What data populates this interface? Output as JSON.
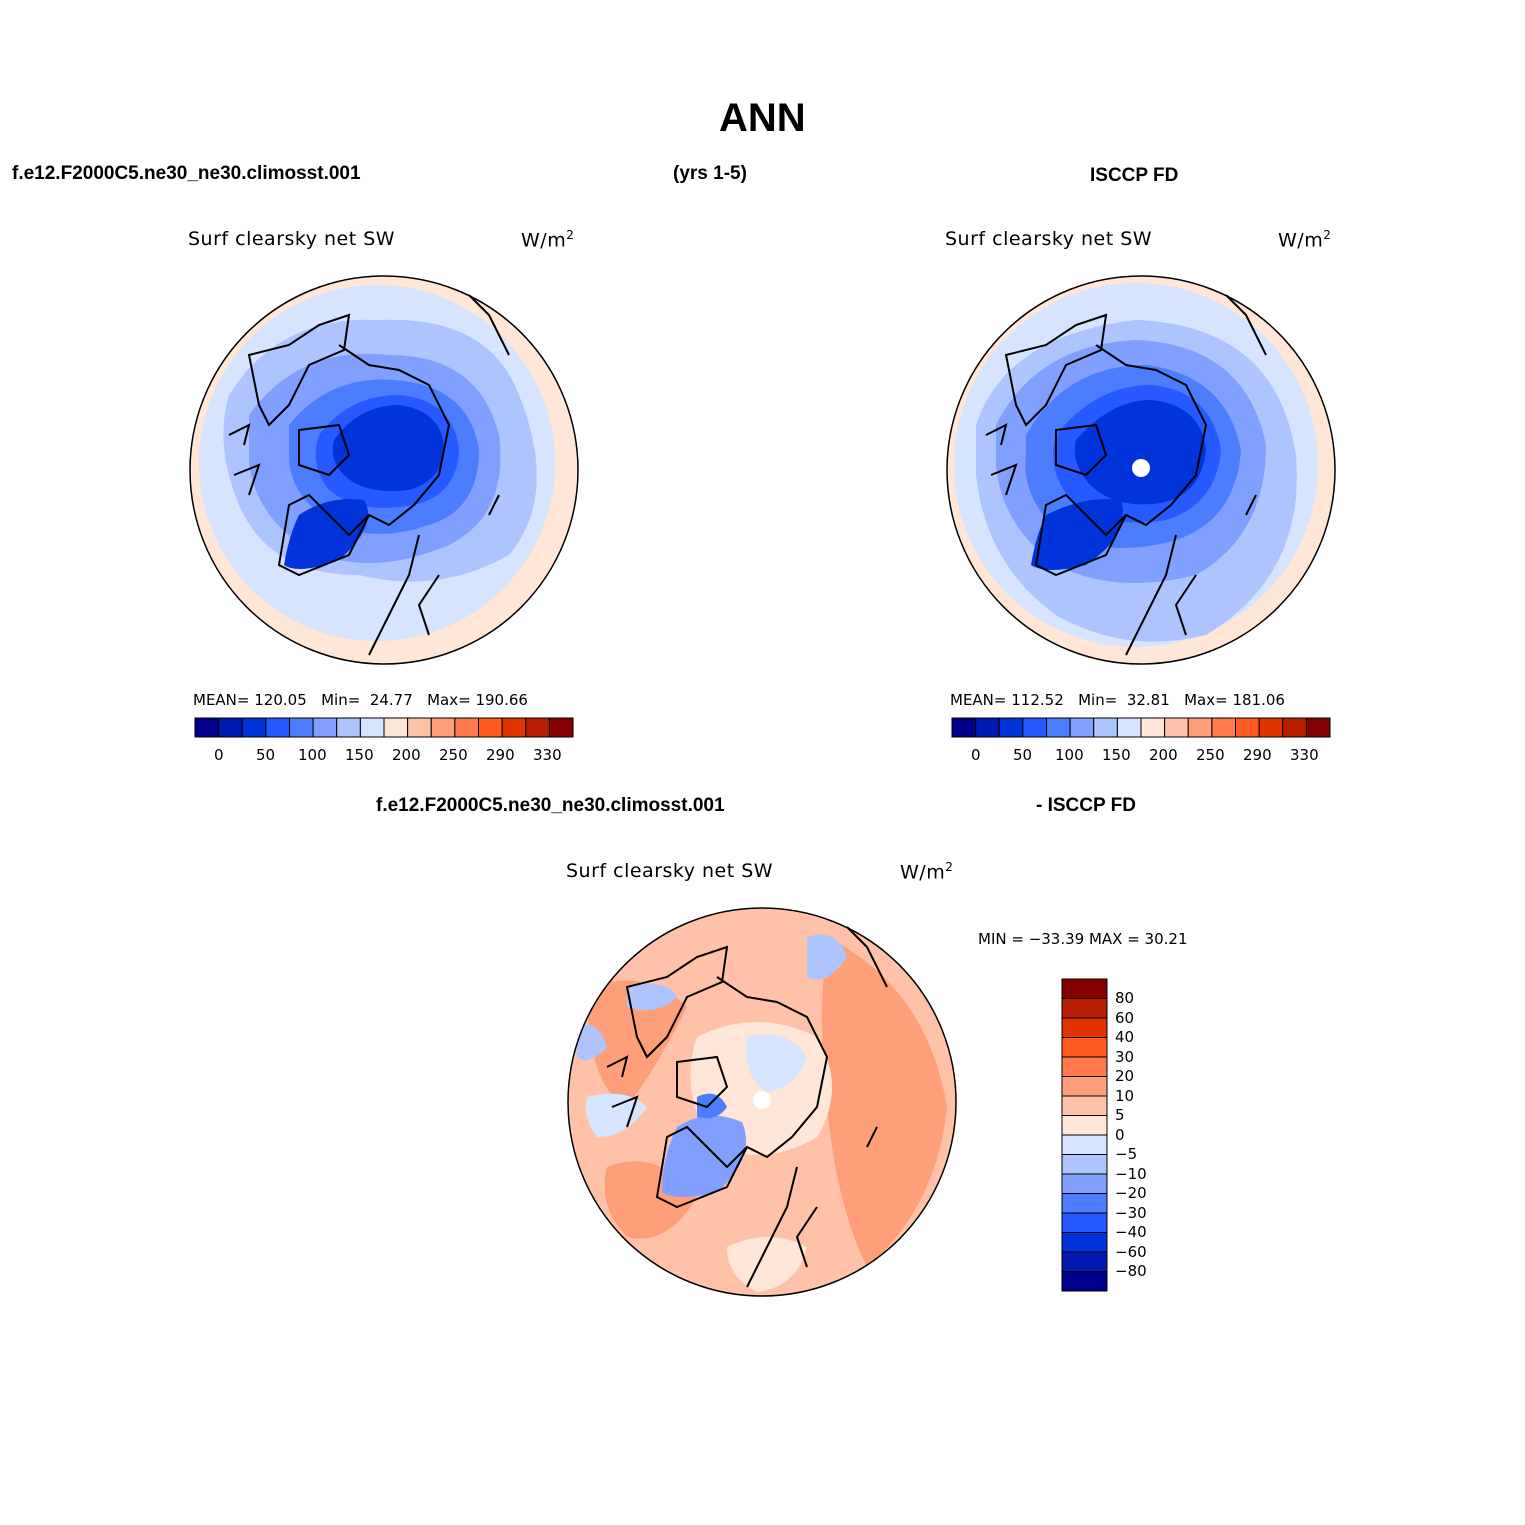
{
  "page": {
    "title": "ANN",
    "left_header": "f.e12.F2000C5.ne30_ne30.climosst.001",
    "years": "(yrs 1-5)",
    "right_header": "ISCCP FD",
    "bottom_header_left": "f.e12.F2000C5.ne30_ne30.climosst.001",
    "bottom_header_right": "- ISCCP FD"
  },
  "colors": {
    "abs_scale": [
      "#00008c",
      "#0019b0",
      "#0033d9",
      "#2659ff",
      "#4d7dff",
      "#809fff",
      "#aec4ff",
      "#d6e4ff",
      "#ffe6d6",
      "#ffc2a8",
      "#ff9f7a",
      "#ff7a4d",
      "#ff5a1f",
      "#e03300",
      "#b81f00",
      "#850000"
    ],
    "diff_scale": [
      "#00008c",
      "#0019b0",
      "#0033d9",
      "#2659ff",
      "#4d7dff",
      "#809fff",
      "#aec4ff",
      "#d6e4ff",
      "#ffe6d6",
      "#ffc2a8",
      "#ff9f7a",
      "#ff7a4d",
      "#ff5a1f",
      "#e03300",
      "#b81f00",
      "#850000"
    ]
  },
  "panels": {
    "model": {
      "name": "Surf clearsky net SW",
      "units_base": "W/m",
      "units_exp": "2",
      "mean_label": "MEAN=",
      "mean": "120.05",
      "min_label": "Min=",
      "min": "24.77",
      "max_label": "Max=",
      "max": "190.66"
    },
    "obs": {
      "name": "Surf clearsky net SW",
      "units_base": "W/m",
      "units_exp": "2",
      "mean_label": "MEAN=",
      "mean": "112.52",
      "min_label": "Min=",
      "min": "32.81",
      "max_label": "Max=",
      "max": "181.06"
    },
    "diff": {
      "name": "Surf clearsky net SW",
      "units_base": "W/m",
      "units_exp": "2",
      "minmax": "MIN = −33.39 MAX =   30.21"
    }
  },
  "abs_colorbar_ticks": [
    "0",
    "50",
    "100",
    "150",
    "200",
    "250",
    "290",
    "330"
  ],
  "diff_colorbar_ticks": [
    "80",
    "60",
    "40",
    "30",
    "20",
    "10",
    "5",
    "0",
    "−5",
    "−10",
    "−20",
    "−30",
    "−40",
    "−60",
    "−80"
  ]
}
